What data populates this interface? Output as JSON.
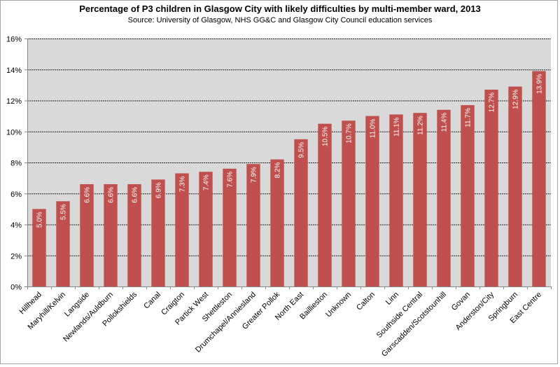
{
  "chart_data": {
    "type": "bar",
    "title": "Percentage of P3 children in Glasgow City with likely difficulties by multi-member ward, 2013",
    "subtitle": "Source: University of Glasgow, NHS GG&C and Glasgow City Council education services",
    "xlabel": "",
    "ylabel": "",
    "ylim": [
      0,
      16
    ],
    "yticks": [
      0,
      2,
      4,
      6,
      8,
      10,
      12,
      14,
      16
    ],
    "ytick_labels": [
      "0%",
      "2%",
      "4%",
      "6%",
      "8%",
      "10%",
      "12%",
      "14%",
      "16%"
    ],
    "grid": true,
    "legend": "none",
    "categories": [
      "Hillhead",
      "Maryhill/Kelvin",
      "Langside",
      "Newlands/Auldburn",
      "Pollokshields",
      "Canal",
      "Craigton",
      "Partick West",
      "Shettleston",
      "Drumchapel/Anniesland",
      "Greater Pollok",
      "North East",
      "Baillieston",
      "Unknown",
      "Calton",
      "Linn",
      "Southside Central",
      "Garscadden/Scotstounhill",
      "Govan",
      "Anderston/City",
      "Springburn",
      "East Centre"
    ],
    "values": [
      5.0,
      5.5,
      6.6,
      6.6,
      6.6,
      6.9,
      7.3,
      7.4,
      7.6,
      7.9,
      8.2,
      9.5,
      10.5,
      10.7,
      11.0,
      11.1,
      11.2,
      11.4,
      11.7,
      12.7,
      12.9,
      13.9
    ],
    "data_labels": [
      "5.0%",
      "5.5%",
      "6.6%",
      "6.6%",
      "6.6%",
      "6.9%",
      "7.3%",
      "7.4%",
      "7.6%",
      "7.9%",
      "8.2%",
      "9.5%",
      "10.5%",
      "10.7%",
      "11.0%",
      "11.1%",
      "11.2%",
      "11.4%",
      "11.7%",
      "12.7%",
      "12.9%",
      "13.9%"
    ],
    "colors": {
      "bar": "#c0504d",
      "plot_background": "#d9d9d9",
      "gridline": "#000000",
      "axis": "#868686"
    }
  }
}
